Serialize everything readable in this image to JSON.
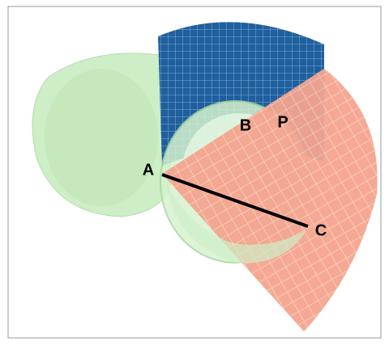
{
  "points": [
    {
      "label": "A"
    },
    {
      "label": "B"
    },
    {
      "label": "P"
    },
    {
      "label": "C"
    }
  ]
}
